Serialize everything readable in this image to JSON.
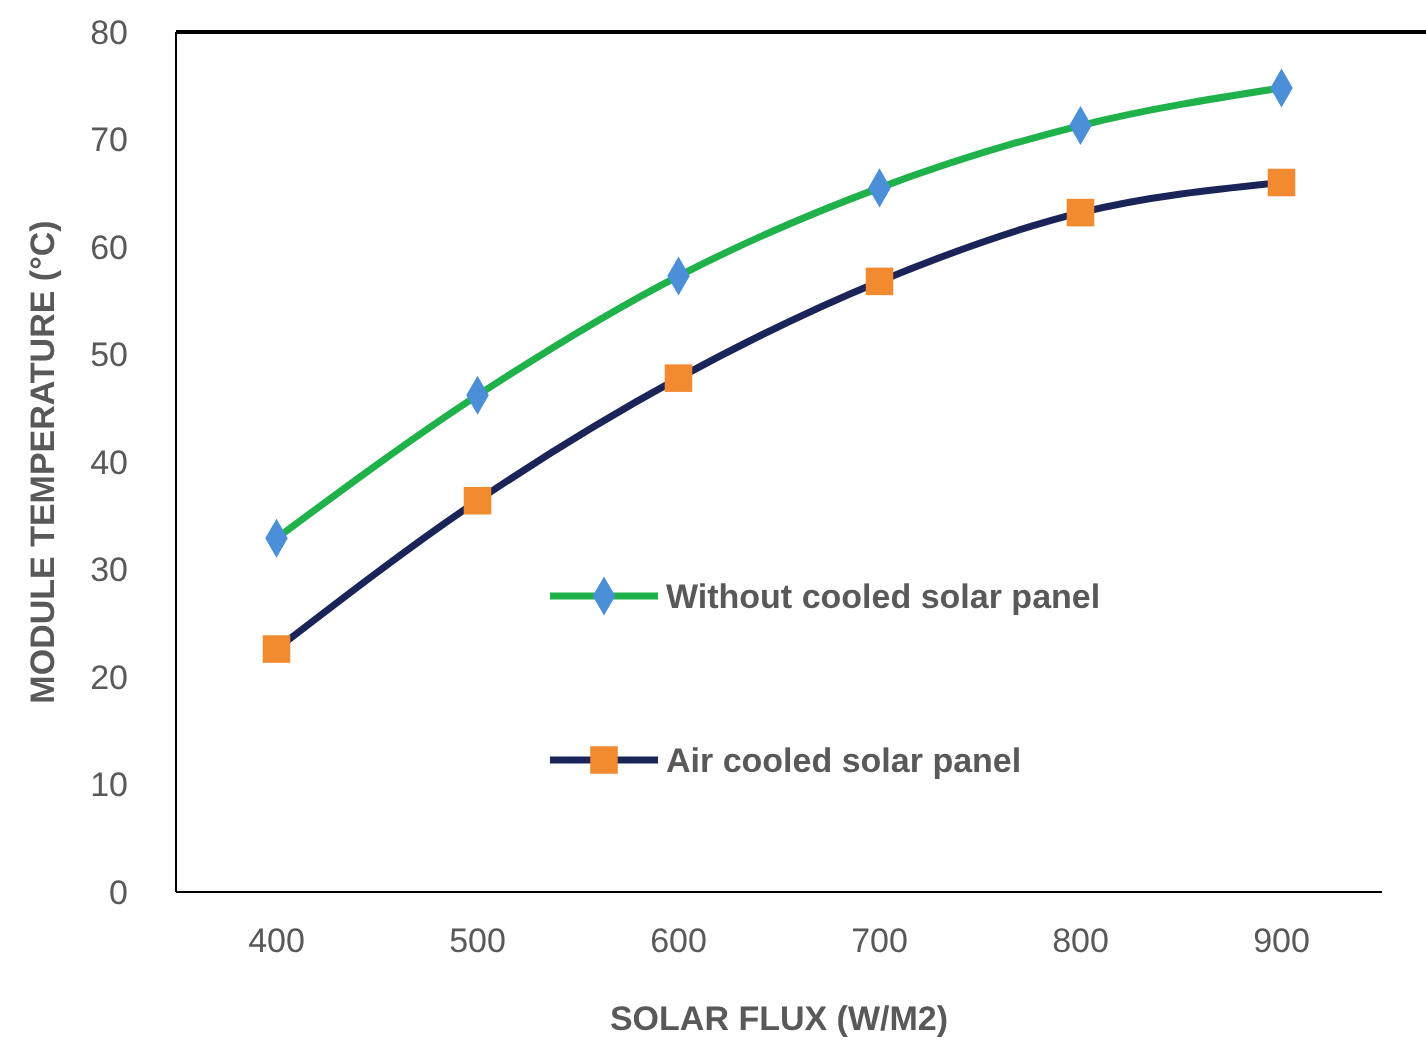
{
  "chart_data": {
    "type": "line",
    "xlabel": "SOLAR FLUX (W/M2)",
    "ylabel": "MODULE TEMPERATURE (°C)",
    "categories": [
      "400",
      "500",
      "600",
      "700",
      "800",
      "900"
    ],
    "ylim": [
      0,
      80
    ],
    "yticks": [
      0,
      10,
      20,
      30,
      40,
      50,
      60,
      70,
      80
    ],
    "grid": false,
    "legend": "right",
    "series": [
      {
        "name": "Without cooled solar panel",
        "color": "#1fb24a",
        "marker": "diamond",
        "colors": [
          "#4a8fd8",
          "#4a8fd8",
          "#4a8fd8",
          "#4a8fd8",
          "#4a8fd8",
          "#4a8fd8"
        ],
        "values": [
          32.9,
          46.2,
          57.3,
          65.5,
          71.3,
          74.8
        ]
      },
      {
        "name": "Air cooled solar panel",
        "color": "#1b2459",
        "marker": "square",
        "colors": [
          "#f28a30",
          "#f28a30",
          "#f28a30",
          "#f28a30",
          "#f28a30",
          "#f28a30"
        ],
        "values": [
          22.6,
          36.4,
          47.8,
          56.8,
          63.2,
          66.0
        ]
      }
    ]
  }
}
